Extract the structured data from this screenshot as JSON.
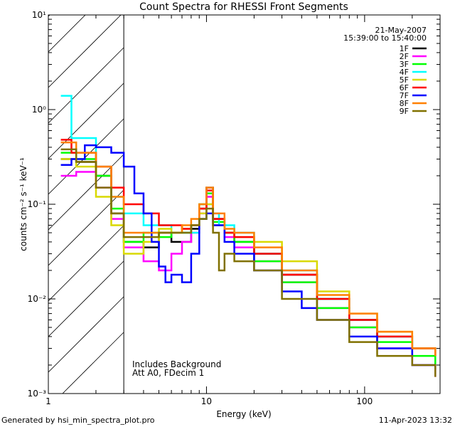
{
  "chart_data": {
    "type": "line",
    "title": "Count Spectra for RHESSI Front Segments",
    "xlabel": "Energy (keV)",
    "ylabel": "counts cm⁻² s⁻¹ keV⁻¹",
    "xscale": "log",
    "yscale": "log",
    "xlim": [
      1,
      300
    ],
    "ylim": [
      0.001,
      10
    ],
    "x_ticks": [
      {
        "v": 1,
        "label": "1"
      },
      {
        "v": 10,
        "label": "10"
      },
      {
        "v": 100,
        "label": "100"
      }
    ],
    "y_ticks": [
      {
        "v": 0.001,
        "label": "10⁻³"
      },
      {
        "v": 0.01,
        "label": "10⁻²"
      },
      {
        "v": 0.1,
        "label": "10⁻¹"
      },
      {
        "v": 1,
        "label": "10⁰"
      },
      {
        "v": 10,
        "label": "10¹"
      }
    ],
    "date": "21-May-2007",
    "time_range": "15:39:00 to 15:40:00",
    "annotation_lines": [
      "Includes Background",
      "Att A0, FDecim 1"
    ],
    "hatched_below_keV": 3,
    "series": [
      {
        "name": "1F",
        "color": "#000000",
        "points": [
          [
            1.2,
            0.3
          ],
          [
            1.5,
            0.28
          ],
          [
            2,
            0.2
          ],
          [
            2.5,
            0.08
          ],
          [
            3,
            0.04
          ],
          [
            4,
            0.035
          ],
          [
            5,
            0.05
          ],
          [
            6,
            0.04
          ],
          [
            7,
            0.04
          ],
          [
            8,
            0.055
          ],
          [
            9,
            0.09
          ],
          [
            10,
            0.15
          ],
          [
            11,
            0.07
          ],
          [
            13,
            0.05
          ],
          [
            15,
            0.04
          ],
          [
            20,
            0.03
          ],
          [
            30,
            0.018
          ],
          [
            50,
            0.01
          ],
          [
            80,
            0.006
          ],
          [
            120,
            0.004
          ],
          [
            200,
            0.003
          ],
          [
            280,
            0.0025
          ]
        ]
      },
      {
        "name": "2F",
        "color": "#ff00ff",
        "points": [
          [
            1.2,
            0.2
          ],
          [
            1.5,
            0.22
          ],
          [
            2,
            0.15
          ],
          [
            2.5,
            0.07
          ],
          [
            3,
            0.035
          ],
          [
            4,
            0.025
          ],
          [
            5,
            0.02
          ],
          [
            6,
            0.03
          ],
          [
            7,
            0.04
          ],
          [
            8,
            0.05
          ],
          [
            9,
            0.08
          ],
          [
            10,
            0.12
          ],
          [
            11,
            0.06
          ],
          [
            13,
            0.045
          ],
          [
            15,
            0.035
          ],
          [
            20,
            0.025
          ],
          [
            30,
            0.015
          ],
          [
            50,
            0.008
          ],
          [
            80,
            0.005
          ],
          [
            120,
            0.003
          ],
          [
            200,
            0.002
          ],
          [
            280,
            0.0015
          ]
        ]
      },
      {
        "name": "3F",
        "color": "#00ff00",
        "points": [
          [
            1.2,
            0.35
          ],
          [
            1.5,
            0.3
          ],
          [
            2,
            0.2
          ],
          [
            2.5,
            0.09
          ],
          [
            3,
            0.04
          ],
          [
            4,
            0.05
          ],
          [
            5,
            0.045
          ],
          [
            6,
            0.05
          ],
          [
            7,
            0.05
          ],
          [
            8,
            0.06
          ],
          [
            9,
            0.1
          ],
          [
            10,
            0.13
          ],
          [
            11,
            0.065
          ],
          [
            13,
            0.05
          ],
          [
            15,
            0.04
          ],
          [
            20,
            0.025
          ],
          [
            30,
            0.015
          ],
          [
            50,
            0.008
          ],
          [
            80,
            0.005
          ],
          [
            120,
            0.0035
          ],
          [
            200,
            0.0025
          ],
          [
            280,
            0.002
          ]
        ]
      },
      {
        "name": "4F",
        "color": "#00ffff",
        "points": [
          [
            1.2,
            1.4
          ],
          [
            1.4,
            0.5
          ],
          [
            1.6,
            0.5
          ],
          [
            2,
            0.25
          ],
          [
            2.5,
            0.12
          ],
          [
            3,
            0.08
          ],
          [
            4,
            0.06
          ],
          [
            5,
            0.06
          ],
          [
            6,
            0.05
          ],
          [
            7,
            0.05
          ],
          [
            8,
            0.05
          ],
          [
            9,
            0.07
          ],
          [
            10,
            0.1
          ],
          [
            11,
            0.08
          ],
          [
            12,
            0.06
          ],
          [
            15,
            0.05
          ],
          [
            20,
            0.03
          ],
          [
            30,
            0.02
          ],
          [
            50,
            0.01
          ],
          [
            80,
            0.006
          ],
          [
            120,
            0.004
          ],
          [
            200,
            0.003
          ],
          [
            280,
            0.0025
          ]
        ]
      },
      {
        "name": "5F",
        "color": "#d9d900",
        "points": [
          [
            1.2,
            0.3
          ],
          [
            1.5,
            0.25
          ],
          [
            2,
            0.12
          ],
          [
            2.5,
            0.06
          ],
          [
            3,
            0.03
          ],
          [
            4,
            0.04
          ],
          [
            5,
            0.055
          ],
          [
            6,
            0.05
          ],
          [
            7,
            0.055
          ],
          [
            8,
            0.06
          ],
          [
            9,
            0.08
          ],
          [
            10,
            0.1
          ],
          [
            11,
            0.06
          ],
          [
            13,
            0.05
          ],
          [
            15,
            0.045
          ],
          [
            20,
            0.04
          ],
          [
            30,
            0.025
          ],
          [
            50,
            0.012
          ],
          [
            80,
            0.007
          ],
          [
            120,
            0.0045
          ],
          [
            200,
            0.003
          ],
          [
            280,
            0.0025
          ]
        ]
      },
      {
        "name": "6F",
        "color": "#ff0000",
        "points": [
          [
            1.2,
            0.48
          ],
          [
            1.4,
            0.35
          ],
          [
            1.6,
            0.35
          ],
          [
            2,
            0.25
          ],
          [
            2.5,
            0.15
          ],
          [
            3,
            0.1
          ],
          [
            4,
            0.08
          ],
          [
            5,
            0.06
          ],
          [
            6,
            0.06
          ],
          [
            7,
            0.055
          ],
          [
            8,
            0.06
          ],
          [
            9,
            0.09
          ],
          [
            10,
            0.14
          ],
          [
            11,
            0.07
          ],
          [
            13,
            0.05
          ],
          [
            15,
            0.045
          ],
          [
            20,
            0.03
          ],
          [
            30,
            0.018
          ],
          [
            50,
            0.01
          ],
          [
            80,
            0.006
          ],
          [
            120,
            0.004
          ],
          [
            200,
            0.003
          ],
          [
            280,
            0.0025
          ]
        ]
      },
      {
        "name": "7F",
        "color": "#0000ff",
        "points": [
          [
            1.2,
            0.26
          ],
          [
            1.4,
            0.3
          ],
          [
            1.7,
            0.42
          ],
          [
            2,
            0.4
          ],
          [
            2.5,
            0.35
          ],
          [
            3,
            0.25
          ],
          [
            3.5,
            0.13
          ],
          [
            4,
            0.08
          ],
          [
            4.5,
            0.04
          ],
          [
            5,
            0.022
          ],
          [
            5.5,
            0.015
          ],
          [
            6,
            0.018
          ],
          [
            7,
            0.015
          ],
          [
            8,
            0.03
          ],
          [
            9,
            0.07
          ],
          [
            10,
            0.08
          ],
          [
            11,
            0.06
          ],
          [
            13,
            0.04
          ],
          [
            15,
            0.03
          ],
          [
            20,
            0.02
          ],
          [
            30,
            0.012
          ],
          [
            40,
            0.008
          ],
          [
            50,
            0.006
          ],
          [
            80,
            0.004
          ],
          [
            120,
            0.003
          ],
          [
            200,
            0.002
          ],
          [
            280,
            0.0018
          ]
        ]
      },
      {
        "name": "8F",
        "color": "#ff8000",
        "points": [
          [
            1.2,
            0.45
          ],
          [
            1.5,
            0.35
          ],
          [
            2,
            0.25
          ],
          [
            2.5,
            0.12
          ],
          [
            3,
            0.05
          ],
          [
            4,
            0.05
          ],
          [
            5,
            0.05
          ],
          [
            6,
            0.05
          ],
          [
            7,
            0.06
          ],
          [
            8,
            0.07
          ],
          [
            9,
            0.1
          ],
          [
            10,
            0.15
          ],
          [
            11,
            0.08
          ],
          [
            13,
            0.055
          ],
          [
            15,
            0.05
          ],
          [
            20,
            0.035
          ],
          [
            30,
            0.02
          ],
          [
            50,
            0.011
          ],
          [
            80,
            0.007
          ],
          [
            120,
            0.0045
          ],
          [
            200,
            0.003
          ],
          [
            280,
            0.0025
          ]
        ]
      },
      {
        "name": "9F",
        "color": "#807000",
        "points": [
          [
            1.2,
            0.38
          ],
          [
            1.5,
            0.28
          ],
          [
            2,
            0.15
          ],
          [
            2.5,
            0.08
          ],
          [
            3,
            0.045
          ],
          [
            4,
            0.045
          ],
          [
            5,
            0.05
          ],
          [
            6,
            0.05
          ],
          [
            7,
            0.05
          ],
          [
            8,
            0.06
          ],
          [
            9,
            0.07
          ],
          [
            10,
            0.09
          ],
          [
            11,
            0.05
          ],
          [
            12,
            0.02
          ],
          [
            13,
            0.03
          ],
          [
            15,
            0.025
          ],
          [
            20,
            0.02
          ],
          [
            30,
            0.01
          ],
          [
            50,
            0.006
          ],
          [
            80,
            0.0035
          ],
          [
            120,
            0.0025
          ],
          [
            200,
            0.002
          ],
          [
            280,
            0.0015
          ]
        ]
      }
    ]
  },
  "footer": {
    "generated_by": "Generated by hsi_min_spectra_plot.pro",
    "timestamp": "11-Apr-2023 13:32"
  }
}
